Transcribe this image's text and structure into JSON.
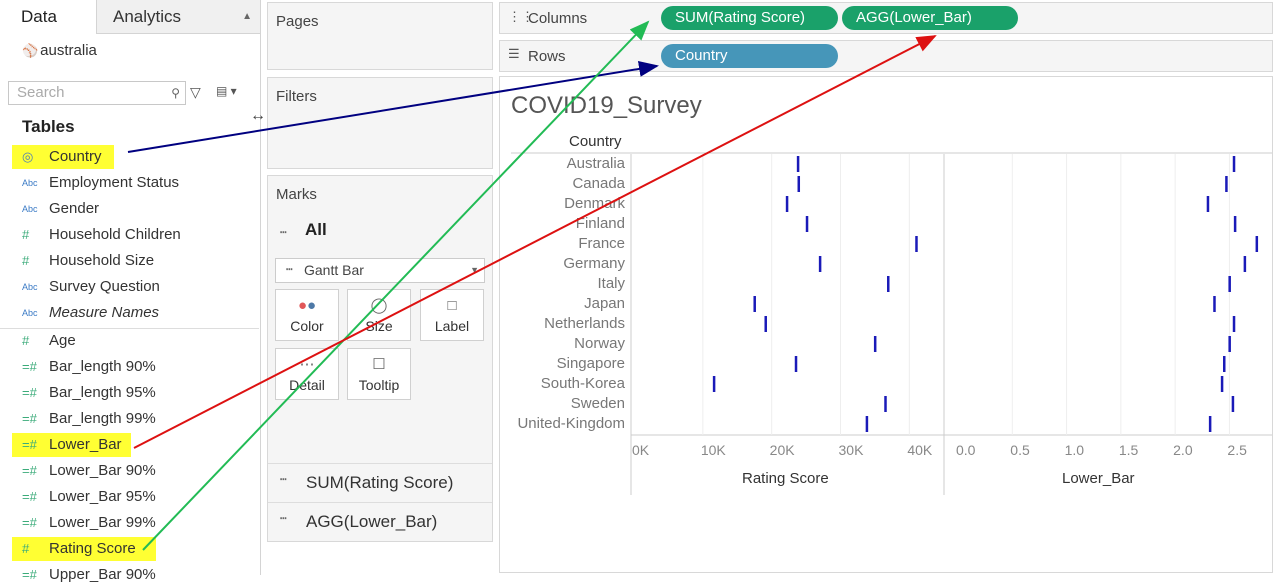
{
  "left_pane": {
    "tabs": {
      "data": "Data",
      "analytics": "Analytics"
    },
    "data_source": "australia",
    "search_placeholder": "Search",
    "tables_heading": "Tables",
    "dimensions": [
      {
        "label": "Country",
        "type_icon": "globe-icon",
        "highlighted": true
      },
      {
        "label": "Employment Status",
        "type_icon": "abc-icon",
        "highlighted": false
      },
      {
        "label": "Gender",
        "type_icon": "abc-icon",
        "highlighted": false
      },
      {
        "label": "Household Children",
        "type_icon": "hash-icon",
        "highlighted": false
      },
      {
        "label": "Household Size",
        "type_icon": "hash-icon",
        "highlighted": false
      },
      {
        "label": "Survey Question",
        "type_icon": "abc-icon",
        "highlighted": false
      },
      {
        "label": "Measure Names",
        "type_icon": "abc-icon",
        "highlighted": false
      }
    ],
    "measures": [
      {
        "label": "Age",
        "type_icon": "hash-icon",
        "highlighted": false
      },
      {
        "label": "Bar_length 90%",
        "type_icon": "calc-icon",
        "highlighted": false
      },
      {
        "label": "Bar_length 95%",
        "type_icon": "calc-icon",
        "highlighted": false
      },
      {
        "label": "Bar_length 99%",
        "type_icon": "calc-icon",
        "highlighted": false
      },
      {
        "label": "Lower_Bar",
        "type_icon": "calc-icon",
        "highlighted": true
      },
      {
        "label": "Lower_Bar 90%",
        "type_icon": "calc-icon",
        "highlighted": false
      },
      {
        "label": "Lower_Bar 95%",
        "type_icon": "calc-icon",
        "highlighted": false
      },
      {
        "label": "Lower_Bar 99%",
        "type_icon": "calc-icon",
        "highlighted": false
      },
      {
        "label": "Rating Score",
        "type_icon": "hash-icon",
        "highlighted": true
      },
      {
        "label": "Upper_Bar 90%",
        "type_icon": "calc-icon",
        "highlighted": false
      }
    ]
  },
  "shelves": {
    "pages": "Pages",
    "filters": "Filters",
    "marks": "Marks",
    "marks_all": "All",
    "mark_type": "Gantt Bar",
    "mark_buttons": [
      "Color",
      "Size",
      "Label",
      "Detail",
      "Tooltip"
    ],
    "mark_cards": [
      "SUM(Rating Score)",
      "AGG(Lower_Bar)"
    ],
    "columns_label": "Columns",
    "rows_label": "Rows",
    "columns_pills": [
      "SUM(Rating Score)",
      "AGG(Lower_Bar)"
    ],
    "rows_pills": [
      "Country"
    ]
  },
  "colors": {
    "green_pill": "#1aa16a",
    "blue_pill": "#4696b9",
    "highlight": "#ffff33",
    "mark": "#1a1ab8",
    "arrow_blue": "#000080",
    "arrow_green": "#22bb55",
    "arrow_red": "#dd1111"
  },
  "chart_data": {
    "type": "gantt",
    "title": "COVID19_Survey",
    "row_header": "Country",
    "categories": [
      "Australia",
      "Canada",
      "Denmark",
      "Finland",
      "France",
      "Germany",
      "Italy",
      "Japan",
      "Netherlands",
      "Norway",
      "Singapore",
      "South-Korea",
      "Sweden",
      "United-Kingdom"
    ],
    "panels": [
      {
        "xlabel": "Rating Score",
        "ticks": [
          "0K",
          "10K",
          "20K",
          "30K",
          "40K"
        ],
        "tick_values": [
          0,
          10000,
          20000,
          30000,
          40000
        ],
        "xlim": [
          0,
          43000
        ],
        "values": [
          23800,
          23900,
          22200,
          25100,
          41000,
          27000,
          36900,
          17500,
          19100,
          35000,
          23500,
          11600,
          36500,
          33800
        ]
      },
      {
        "xlabel": "Lower_Bar",
        "ticks": [
          "0.0",
          "0.5",
          "1.0",
          "1.5",
          "2.0",
          "2.5"
        ],
        "tick_values": [
          0,
          0.5,
          1.0,
          1.5,
          2.0,
          2.5
        ],
        "xlim": [
          0,
          2.8
        ],
        "values": [
          2.54,
          2.47,
          2.3,
          2.55,
          2.75,
          2.64,
          2.5,
          2.36,
          2.54,
          2.5,
          2.45,
          2.43,
          2.53,
          2.32
        ]
      }
    ]
  }
}
